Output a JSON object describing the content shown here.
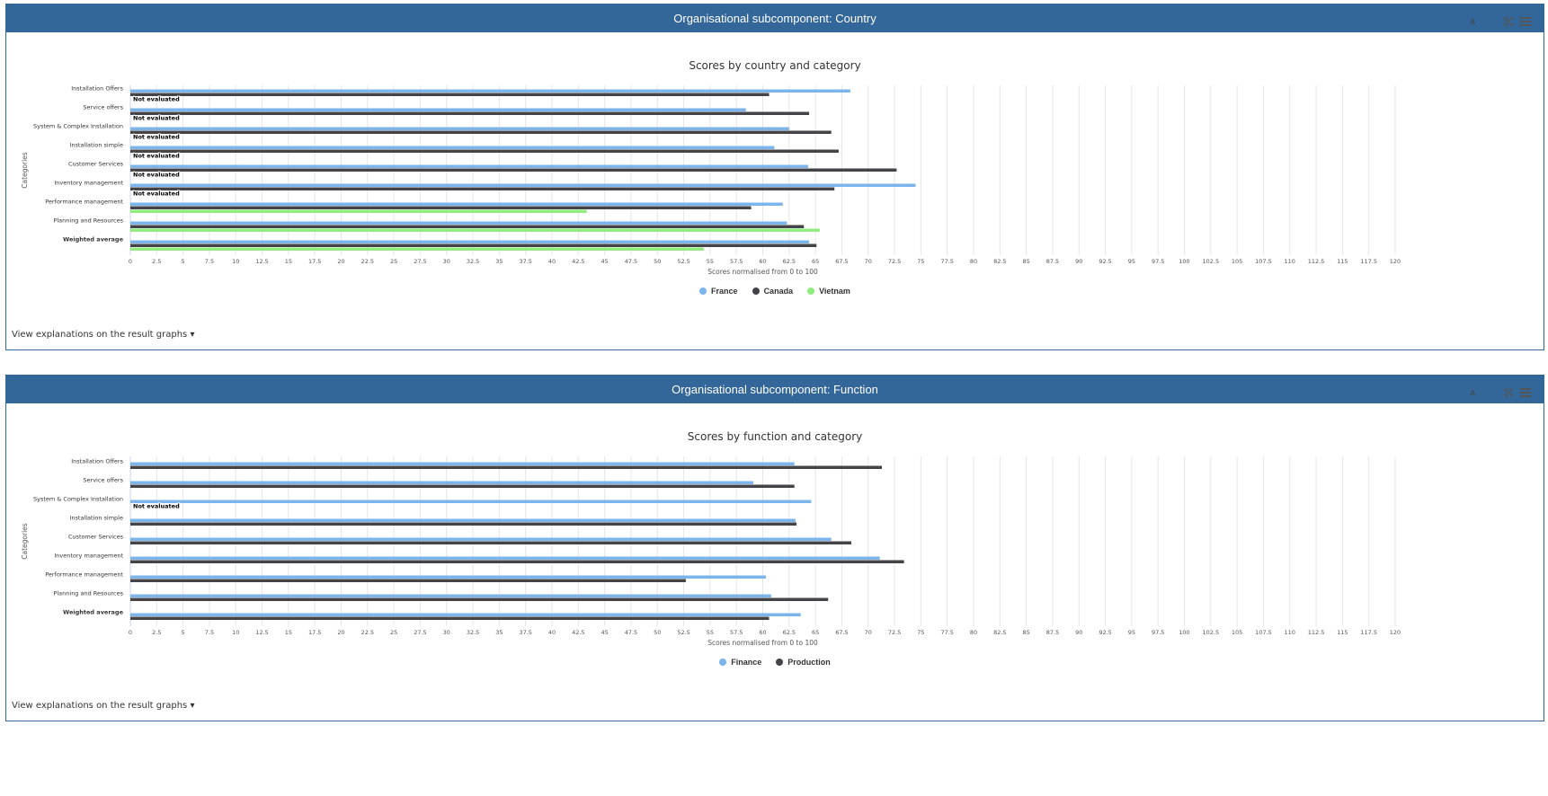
{
  "footer_link": "View explanations on the result graphs",
  "tools": {
    "font_label": "A"
  },
  "colors": {
    "France": "#7cb5ec",
    "Canada": "#434348",
    "Vietnam": "#90ed7d",
    "Finance": "#7cb5ec",
    "Production": "#434348",
    "header": "#336699"
  },
  "chart_data": [
    {
      "type": "bar",
      "panel_header": "Organisational subcomponent: Country",
      "title": "Scores by country and category",
      "xlabel": "Scores normalised from 0 to 100",
      "ylabel": "Categories",
      "xlim": [
        0,
        120
      ],
      "tick_step": 2.5,
      "grid": true,
      "legend_position": "bottom-center",
      "categories": [
        "Installation Offers",
        "Service offers",
        "System & Complex Installation",
        "Installation simple",
        "Customer Services",
        "Inventory management",
        "Performance management",
        "Planning and Resources",
        "Weighted average"
      ],
      "not_evaluated_label": "Not evaluated",
      "series": [
        {
          "name": "France",
          "values": [
            68.3,
            58.4,
            62.5,
            61.1,
            64.3,
            74.5,
            61.9,
            62.3,
            64.4
          ]
        },
        {
          "name": "Canada",
          "values": [
            60.6,
            64.4,
            66.5,
            67.2,
            72.7,
            66.8,
            58.9,
            63.9,
            65.1
          ]
        },
        {
          "name": "Vietnam",
          "values": [
            null,
            null,
            null,
            null,
            null,
            null,
            43.3,
            65.4,
            54.4
          ]
        }
      ]
    },
    {
      "type": "bar",
      "panel_header": "Organisational subcomponent: Function",
      "title": "Scores by function and category",
      "xlabel": "Scores normalised from 0 to 100",
      "ylabel": "Categories",
      "xlim": [
        0,
        120
      ],
      "tick_step": 2.5,
      "grid": true,
      "legend_position": "bottom-center",
      "categories": [
        "Installation Offers",
        "Service offers",
        "System & Complex Installation",
        "Installation simple",
        "Customer Services",
        "Inventory management",
        "Performance management",
        "Planning and Resources",
        "Weighted average"
      ],
      "not_evaluated_label": "Not evaluated",
      "series": [
        {
          "name": "Finance",
          "values": [
            63.0,
            59.1,
            64.6,
            63.1,
            66.5,
            71.1,
            60.3,
            60.8,
            63.6
          ]
        },
        {
          "name": "Production",
          "values": [
            71.3,
            63.0,
            null,
            63.2,
            68.4,
            73.4,
            52.7,
            66.2,
            60.6
          ]
        }
      ]
    }
  ]
}
